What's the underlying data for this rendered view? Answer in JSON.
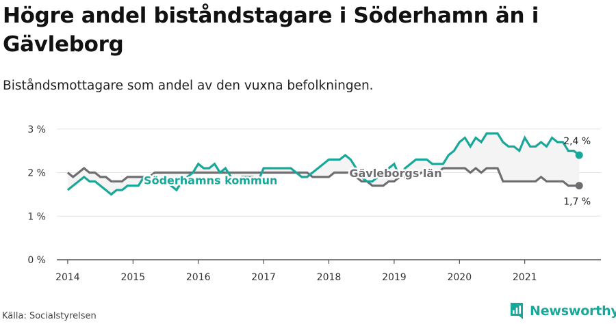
{
  "title": "Högre andel biståndstagare i Söderhamn än i Gävleborg",
  "subtitle": "Biståndsmottagare som andel av den vuxna befolkningen.",
  "source": "Källa: Socialstyrelsen",
  "brand": "Newsworthy",
  "colors": {
    "soderhamn": "#18a799",
    "gavleborg": "#6e6e72",
    "band": "#f4f4f4",
    "grid": "#e2e2e2",
    "axis": "#333333"
  },
  "chart_data": {
    "type": "line",
    "title": "Högre andel biståndstagare i Söderhamn än i Gävleborg",
    "subtitle": "Biståndsmottagare som andel av den vuxna befolkningen.",
    "xlabel": "",
    "ylabel": "",
    "ylim": [
      0,
      3.2
    ],
    "xlim": [
      "2013-11",
      "2022-03"
    ],
    "y_ticks": [
      0,
      1,
      2,
      3
    ],
    "y_tick_labels": [
      "0 %",
      "1 %",
      "2 %",
      "3 %"
    ],
    "x_ticks": [
      "2014-01",
      "2015-01",
      "2016-01",
      "2017-01",
      "2018-01",
      "2019-01",
      "2020-01",
      "2021-01"
    ],
    "x_tick_labels": [
      "2014",
      "2015",
      "2016",
      "2017",
      "2018",
      "2019",
      "2020",
      "2021"
    ],
    "grid": true,
    "legend": "inline labels",
    "annotations": [
      "2,4 %",
      "1,7 %"
    ],
    "series": [
      {
        "name": "Söderhamns kommun",
        "start": "2014-01",
        "values": [
          1.6,
          1.7,
          1.8,
          1.9,
          1.8,
          1.8,
          1.7,
          1.6,
          1.5,
          1.6,
          1.6,
          1.7,
          1.7,
          1.7,
          1.9,
          1.9,
          1.8,
          1.8,
          1.8,
          1.7,
          1.6,
          1.8,
          1.9,
          2.0,
          2.2,
          2.1,
          2.1,
          2.2,
          2.0,
          2.1,
          1.9,
          1.8,
          1.9,
          1.9,
          1.9,
          1.8,
          2.1,
          2.1,
          2.1,
          2.1,
          2.1,
          2.1,
          2.0,
          1.9,
          1.9,
          2.0,
          2.1,
          2.2,
          2.3,
          2.3,
          2.3,
          2.4,
          2.3,
          2.1,
          1.9,
          1.8,
          1.8,
          1.9,
          2.0,
          2.1,
          2.2,
          1.9,
          2.1,
          2.2,
          2.3,
          2.3,
          2.3,
          2.2,
          2.2,
          2.2,
          2.4,
          2.5,
          2.7,
          2.8,
          2.6,
          2.8,
          2.7,
          2.9,
          2.9,
          2.9,
          2.7,
          2.6,
          2.6,
          2.5,
          2.8,
          2.6,
          2.6,
          2.7,
          2.6,
          2.8,
          2.7,
          2.7,
          2.5,
          2.5,
          2.4
        ]
      },
      {
        "name": "Gävleborgs län",
        "start": "2014-01",
        "values": [
          2.0,
          1.9,
          2.0,
          2.1,
          2.0,
          2.0,
          1.9,
          1.9,
          1.8,
          1.8,
          1.8,
          1.9,
          1.9,
          1.9,
          1.9,
          1.9,
          2.0,
          2.0,
          2.0,
          2.0,
          2.0,
          2.0,
          2.0,
          2.0,
          2.0,
          2.0,
          2.0,
          2.0,
          2.0,
          2.0,
          2.0,
          2.0,
          2.0,
          2.0,
          2.0,
          2.0,
          2.0,
          2.0,
          2.0,
          2.0,
          2.0,
          2.0,
          2.0,
          2.0,
          2.0,
          1.9,
          1.9,
          1.9,
          1.9,
          2.0,
          2.0,
          2.0,
          2.0,
          1.9,
          1.8,
          1.8,
          1.7,
          1.7,
          1.7,
          1.8,
          1.8,
          1.9,
          1.9,
          1.9,
          1.9,
          2.0,
          2.0,
          2.0,
          2.0,
          2.1,
          2.1,
          2.1,
          2.1,
          2.1,
          2.0,
          2.1,
          2.0,
          2.1,
          2.1,
          2.1,
          1.8,
          1.8,
          1.8,
          1.8,
          1.8,
          1.8,
          1.8,
          1.9,
          1.8,
          1.8,
          1.8,
          1.8,
          1.7,
          1.7,
          1.7
        ]
      }
    ]
  }
}
